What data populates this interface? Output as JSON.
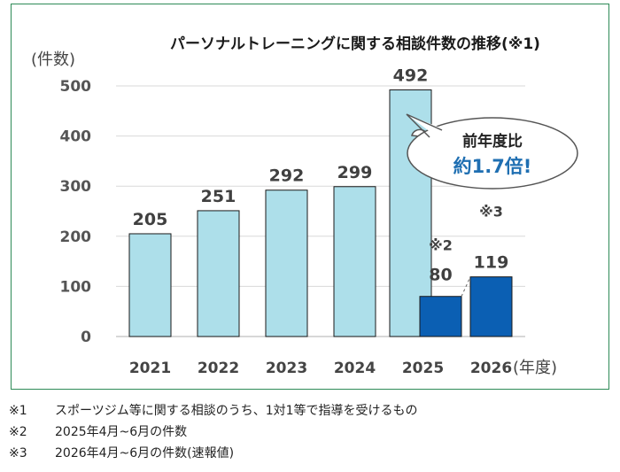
{
  "chart_data": {
    "type": "bar",
    "title": "パーソナルトレーニングに関する相談件数の推移(※1)",
    "ylabel": "(件数)",
    "xlabel": "(年度)",
    "ylim": [
      0,
      500
    ],
    "yticks": [
      "0",
      "100",
      "200",
      "300",
      "400",
      "500"
    ],
    "categories": [
      "2021",
      "2022",
      "2023",
      "2024",
      "2025",
      "2026"
    ],
    "series": [
      {
        "values": [
          205,
          251,
          292,
          299,
          492,
          null
        ],
        "color": "#addfea"
      },
      {
        "values": [
          null,
          null,
          null,
          null,
          80,
          119
        ],
        "color": "#0b5fb3"
      }
    ],
    "data_labels": [
      "205",
      "251",
      "292",
      "299",
      "492",
      "80",
      "119"
    ],
    "annotations": {
      "note2": "※2",
      "note3": "※3",
      "callout_line1": "前年度比",
      "callout_line2": "約1.7倍!"
    },
    "grid": true,
    "legend": "none"
  },
  "footnotes": [
    {
      "mark": "※1",
      "text": "スポーツジム等に関する相談のうち、1対1等で指導を受けるもの"
    },
    {
      "mark": "※2",
      "text": "2025年4月~6月の件数"
    },
    {
      "mark": "※3",
      "text": "2026年4月~6月の件数(速報値)"
    }
  ]
}
